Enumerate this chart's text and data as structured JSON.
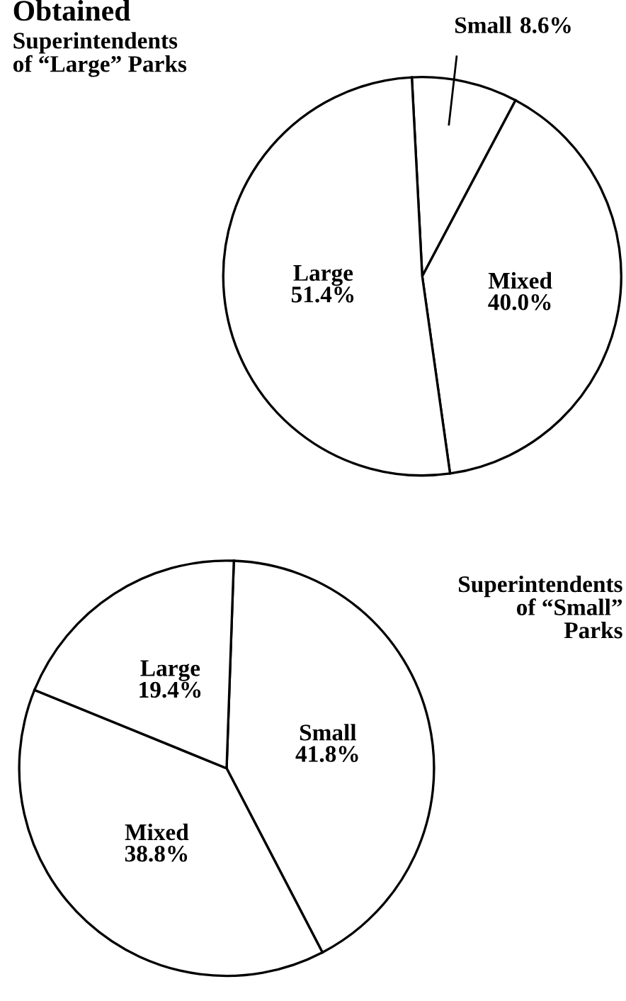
{
  "chart_data": [
    {
      "type": "pie",
      "title": "Obtained",
      "subtitle": "Superintendents\nof “Large” Parks",
      "categories": [
        "Small",
        "Mixed",
        "Large"
      ],
      "values": [
        8.6,
        40.0,
        51.4
      ],
      "value_labels": [
        "8.6%",
        "40.0%",
        "51.4%"
      ],
      "colors": [
        "#ffffff",
        "#ffffff",
        "#ffffff"
      ]
    },
    {
      "type": "pie",
      "subtitle": "Superintendents\nof “Small”\nParks",
      "categories": [
        "Small",
        "Mixed",
        "Large"
      ],
      "values": [
        41.8,
        38.8,
        19.4
      ],
      "value_labels": [
        "41.8%",
        "38.8%",
        "19.4%"
      ],
      "colors": [
        "#ffffff",
        "#ffffff",
        "#ffffff"
      ]
    }
  ]
}
